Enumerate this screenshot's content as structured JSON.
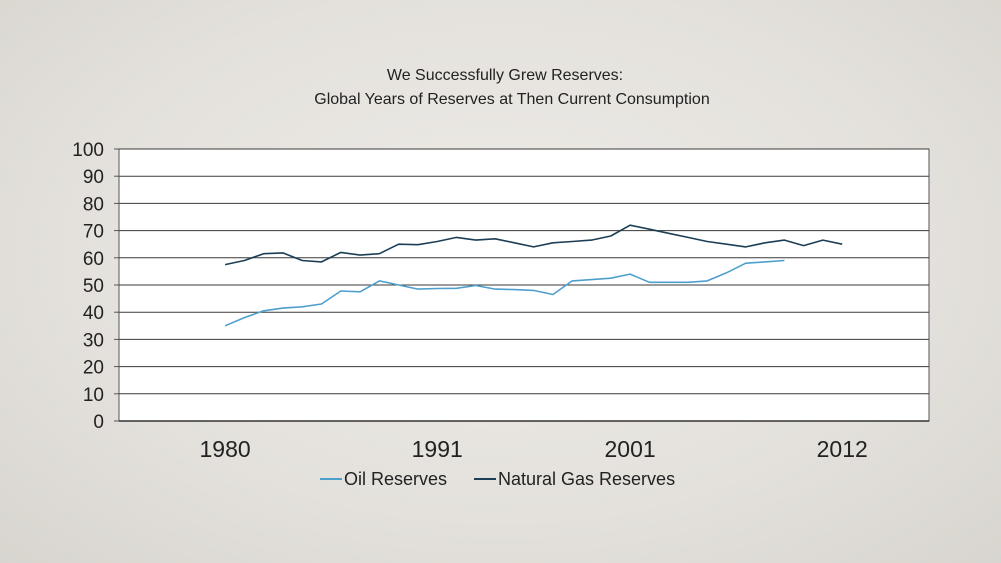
{
  "chart_data": {
    "type": "line",
    "title": [
      "We Successfully Grew Reserves:",
      "Global Years of Reserves at Then Current Consumption"
    ],
    "x_tick_labels": [
      "1980",
      "1991",
      "2001",
      "2012"
    ],
    "x": [
      1980,
      1981,
      1982,
      1983,
      1984,
      1985,
      1986,
      1987,
      1988,
      1989,
      1990,
      1991,
      1992,
      1993,
      1994,
      1995,
      1996,
      1997,
      1998,
      1999,
      2000,
      2001,
      2002,
      2003,
      2004,
      2005,
      2006,
      2007,
      2008,
      2009,
      2010,
      2011,
      2012
    ],
    "xlim": [
      1974.5,
      2016.5
    ],
    "ylim": [
      0,
      100
    ],
    "y_ticks": [
      0,
      10,
      20,
      30,
      40,
      50,
      60,
      70,
      80,
      90,
      100
    ],
    "grid": true,
    "legend_position": "bottom-center",
    "series": [
      {
        "name": "Oil Reserves",
        "color": "#4f9fcd",
        "values": [
          35,
          38,
          40.5,
          41.5,
          42,
          43,
          47.8,
          47.5,
          51.5,
          50,
          48.5,
          48.7,
          48.8,
          49.8,
          48.5,
          48.3,
          48,
          46.5,
          51.5,
          52,
          52.5,
          54,
          51,
          51,
          51,
          51.5,
          54.5,
          58,
          58.5,
          59,
          null,
          null,
          null
        ]
      },
      {
        "name": "Natural Gas Reserves",
        "color": "#1c3f57",
        "values": [
          57.5,
          59,
          61.5,
          61.8,
          59,
          58.5,
          62,
          61,
          61.5,
          65,
          64.8,
          66,
          67.5,
          66.5,
          67,
          65.5,
          64,
          65.5,
          66,
          66.5,
          68,
          72,
          70.5,
          69,
          67.5,
          66,
          65,
          64,
          65.5,
          66.5,
          64.5,
          66.5,
          65
        ]
      }
    ]
  }
}
